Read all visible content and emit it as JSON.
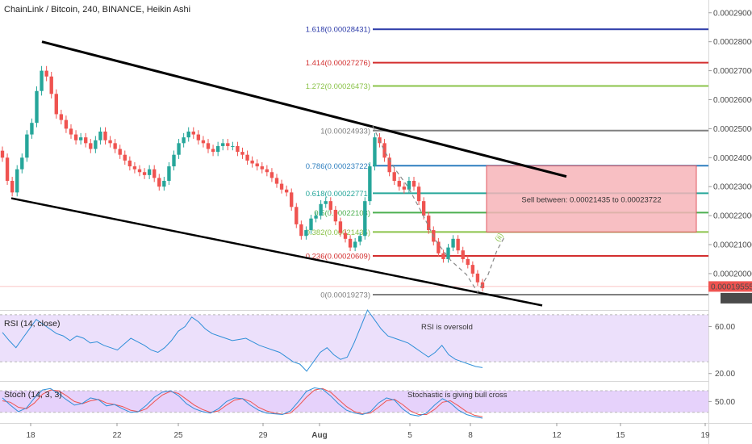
{
  "header": {
    "title": "ChainLink / Bitcoin, 240, BINANCE, Heikin Ashi"
  },
  "colors": {
    "up": "#26a69a",
    "down": "#ef5350",
    "channel": "#000000",
    "fib": {
      "1.618": "#2b3aa8",
      "1.414": "#d32f2f",
      "1.272": "#8bc34a",
      "1": "#808080",
      "0.786": "#2f7fbf",
      "0.618": "#26a69a",
      "0.5": "#4caf50",
      "0.382": "#8bc34a",
      "0.236": "#d32f2f",
      "0": "#808080"
    },
    "sell_zone_fill": "#f7b4b8",
    "sell_zone_border": "#e05a62",
    "rsi_band": "#ece0fb",
    "stoch_band": "#e6d2fb",
    "rsi_line": "#2f8fd8",
    "stoch_k": "#2f8fd8",
    "stoch_d": "#ef5350",
    "current_price_bg": "#ef5350"
  },
  "chart_data": {
    "type": "candlestick",
    "title": "ChainLink / Bitcoin, 240, BINANCE, Heikin Ashi",
    "x_ticks": [
      "18",
      "22",
      "25",
      "29",
      "Aug",
      "5",
      "8",
      "12",
      "15",
      "19"
    ],
    "y_ticks": [
      "0.00029000",
      "0.00028000",
      "0.00027000",
      "0.00026000",
      "0.00025000",
      "0.00024000",
      "0.00023000",
      "0.00022000",
      "0.00021000",
      "0.00020000"
    ],
    "ylim": [
      0.000188,
      0.000293
    ],
    "current_price": "0.00019555",
    "countdown": "01:47:40",
    "fib_levels": [
      {
        "ratio": "1.618",
        "label": "1.618(0.00028431)",
        "value": 0.00028431
      },
      {
        "ratio": "1.414",
        "label": "1.414(0.00027276)",
        "value": 0.00027276
      },
      {
        "ratio": "1.272",
        "label": "1.272(0.00026473)",
        "value": 0.00026473
      },
      {
        "ratio": "1",
        "label": "1(0.00024933)",
        "value": 0.00024933
      },
      {
        "ratio": "0.786",
        "label": "0.786(0.00023722)",
        "value": 0.00023722
      },
      {
        "ratio": "0.618",
        "label": "0.618(0.00022771)",
        "value": 0.00022771
      },
      {
        "ratio": "0.5",
        "label": "0.5(0.00022103)",
        "value": 0.00022103
      },
      {
        "ratio": "0.382",
        "label": "0.382(0.00021435)",
        "value": 0.00021435
      },
      {
        "ratio": "0.236",
        "label": "0.236(0.00020609)",
        "value": 0.00020609
      },
      {
        "ratio": "0",
        "label": "0(0.00019273)",
        "value": 0.00019273
      }
    ],
    "sell_zone": {
      "label": "Sell between: 0.00021435 to 0.00023722",
      "low": 0.00021435,
      "high": 0.00023722
    },
    "candles_close": [
      0.00024,
      0.000232,
      0.000228,
      0.000236,
      0.00024,
      0.000248,
      0.000252,
      0.000263,
      0.00027,
      0.000268,
      0.000262,
      0.000255,
      0.000253,
      0.00025,
      0.000248,
      0.000246,
      0.000247,
      0.000245,
      0.000243,
      0.000246,
      0.000249,
      0.000246,
      0.000245,
      0.000243,
      0.000241,
      0.000239,
      0.000237,
      0.000236,
      0.000235,
      0.000234,
      0.000236,
      0.000233,
      0.00023,
      0.000232,
      0.000237,
      0.000241,
      0.000245,
      0.000247,
      0.000249,
      0.000248,
      0.000246,
      0.000245,
      0.000243,
      0.000242,
      0.000244,
      0.000245,
      0.000244,
      0.000244,
      0.000242,
      0.000241,
      0.000239,
      0.000238,
      0.000237,
      0.000236,
      0.000235,
      0.000233,
      0.000231,
      0.000229,
      0.000228,
      0.000223,
      0.000217,
      0.000213,
      0.000215,
      0.000219,
      0.00022,
      0.000224,
      0.000225,
      0.000222,
      0.000218,
      0.000214,
      0.000212,
      0.000209,
      0.000211,
      0.000213,
      0.000225,
      0.000237,
      0.000247,
      0.000245,
      0.00024,
      0.000235,
      0.000232,
      0.00023,
      0.000229,
      0.000232,
      0.00023,
      0.000225,
      0.00022,
      0.000215,
      0.000211,
      0.000207,
      0.000205,
      0.000209,
      0.000212,
      0.000208,
      0.000205,
      0.000203,
      0.0002,
      0.000197,
      0.000195
    ],
    "candles_start": "Jul 17",
    "candles_end": "Aug 8",
    "annotations": [
      "Sell between: 0.00021435 to 0.00023722"
    ]
  },
  "rsi": {
    "title": "RSI (14, close)",
    "annotation": "RSI is oversold",
    "y_ticks": [
      "60.00",
      "20.00"
    ],
    "values": [
      55,
      48,
      42,
      50,
      58,
      66,
      62,
      58,
      54,
      52,
      48,
      52,
      50,
      46,
      47,
      44,
      42,
      40,
      45,
      50,
      47,
      44,
      40,
      38,
      42,
      48,
      56,
      60,
      68,
      64,
      58,
      54,
      52,
      50,
      48,
      49,
      50,
      47,
      44,
      42,
      40,
      38,
      34,
      30,
      28,
      22,
      30,
      38,
      42,
      36,
      32,
      34,
      46,
      60,
      74,
      66,
      58,
      52,
      50,
      48,
      46,
      42,
      38,
      34,
      38,
      44,
      36,
      32,
      30,
      28,
      26,
      25
    ]
  },
  "stoch": {
    "title": "Stoch (14, 3, 3)",
    "annotation": "Stochastic is giving bull cross",
    "y_ticks": [
      "50.00"
    ],
    "k": [
      60,
      40,
      22,
      32,
      60,
      82,
      86,
      72,
      55,
      40,
      45,
      60,
      55,
      38,
      42,
      30,
      20,
      22,
      40,
      62,
      76,
      80,
      66,
      44,
      30,
      22,
      18,
      30,
      50,
      60,
      58,
      40,
      26,
      18,
      16,
      14,
      24,
      50,
      78,
      88,
      84,
      66,
      44,
      26,
      18,
      14,
      22,
      46,
      60,
      54,
      30,
      14,
      10,
      18,
      40,
      58,
      46,
      26,
      14,
      8,
      4
    ],
    "d": [
      52,
      48,
      34,
      30,
      46,
      70,
      82,
      80,
      66,
      50,
      44,
      52,
      56,
      46,
      42,
      36,
      26,
      22,
      30,
      50,
      68,
      78,
      72,
      56,
      40,
      28,
      20,
      24,
      40,
      54,
      58,
      50,
      34,
      24,
      18,
      15,
      18,
      38,
      62,
      82,
      86,
      76,
      56,
      36,
      22,
      16,
      18,
      34,
      52,
      56,
      42,
      24,
      14,
      14,
      28,
      48,
      52,
      38,
      22,
      12,
      8
    ]
  }
}
